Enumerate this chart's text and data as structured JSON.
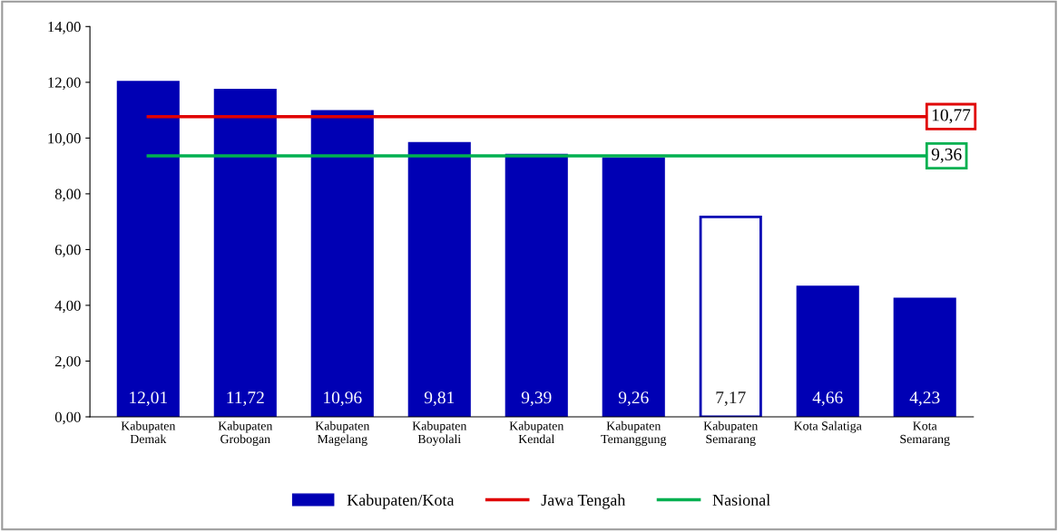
{
  "chart_data": {
    "type": "bar",
    "categories": [
      "Kabupaten\nDemak",
      "Kabupaten\nGrobogan",
      "Kabupaten\nMagelang",
      "Kabupaten\nBoyolali",
      "Kabupaten\nKendal",
      "Kabupaten\nTemanggung",
      "Kabupaten\nSemarang",
      "Kota Salatiga",
      "Kota\nSemarang"
    ],
    "series": [
      {
        "name": "Kabupaten/Kota",
        "color": "#0000b4",
        "colors": [
          "#0000b4",
          "#0000b4",
          "#0000b4",
          "#0000b4",
          "#0000b4",
          "#0000b4",
          "#ffffff",
          "#0000b4",
          "#0000b4"
        ],
        "values": [
          12.01,
          11.72,
          10.96,
          9.81,
          9.39,
          9.26,
          7.17,
          4.66,
          4.23
        ],
        "value_labels": [
          "12,01",
          "11,72",
          "10,96",
          "9,81",
          "9,39",
          "9,26",
          "7,17",
          "4,66",
          "4,23"
        ]
      },
      {
        "name": "Jawa Tengah",
        "type": "line",
        "color": "#e00000",
        "values": [
          10.77,
          10.77,
          10.77,
          10.77,
          10.77,
          10.77,
          10.77,
          10.77,
          10.77
        ],
        "value_labels": [
          null,
          null,
          null,
          null,
          null,
          null,
          null,
          null,
          "10,77"
        ]
      },
      {
        "name": "Nasional",
        "type": "line",
        "color": "#00b050",
        "values": [
          9.36,
          9.36,
          9.36,
          9.36,
          9.36,
          9.36,
          9.36,
          9.36,
          9.36
        ],
        "value_labels": [
          null,
          null,
          null,
          null,
          null,
          null,
          null,
          null,
          "9,36"
        ]
      }
    ],
    "ylim": [
      0,
      14
    ],
    "yticks": [
      {
        "value": 0,
        "label": "0,00"
      },
      {
        "value": 2,
        "label": "2,00"
      },
      {
        "value": 4,
        "label": "4,00"
      },
      {
        "value": 6,
        "label": "6,00"
      },
      {
        "value": 8,
        "label": "8,00"
      },
      {
        "value": 10,
        "label": "10,00"
      },
      {
        "value": 12,
        "label": "12,00"
      },
      {
        "value": 14,
        "label": "14,00"
      }
    ],
    "grid": false,
    "legend": "bottom",
    "marker": "none",
    "line_style": "solid"
  }
}
